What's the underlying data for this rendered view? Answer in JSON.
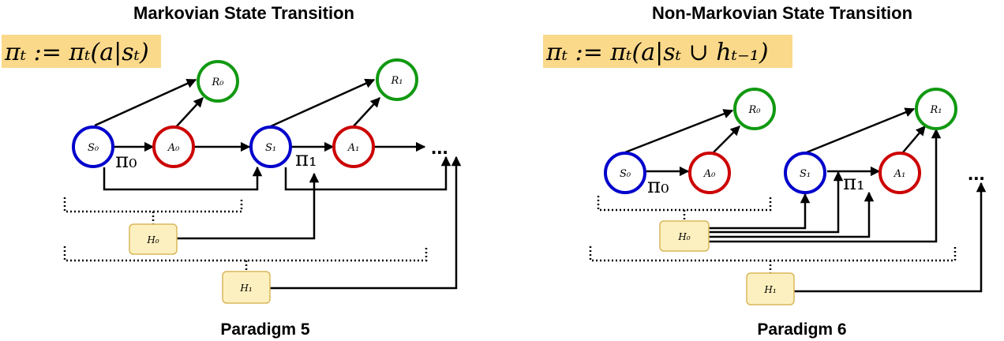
{
  "colors": {
    "state": "#0000cc",
    "action": "#cc0000",
    "reward": "#119911",
    "history_fill": "#fdf0c0",
    "history_stroke": "#d9b75a",
    "highlight": "#fbd98a"
  },
  "panels": [
    {
      "title": "Markovian State Transition",
      "formula": "πₜ := πₜ(a|sₜ)",
      "caption": "Paradigm 5",
      "labels": {
        "s0": "S₀",
        "a0": "A₀",
        "r0": "R₀",
        "s1": "S₁",
        "a1": "A₁",
        "r1": "R₁",
        "h0": "H₀",
        "h1": "H₁",
        "pi0": "π₀",
        "pi1": "π₁",
        "ellipsis": "..."
      }
    },
    {
      "title": "Non-Markovian State Transition",
      "formula": "πₜ := πₜ(a|sₜ ∪ hₜ₋₁)",
      "caption": "Paradigm 6",
      "labels": {
        "s0": "S₀",
        "a0": "A₀",
        "r0": "R₀",
        "s1": "S₁",
        "a1": "A₁",
        "r1": "R₁",
        "h0": "H₀",
        "h1": "H₁",
        "pi0": "π₀",
        "pi1": "π₁",
        "ellipsis": "..."
      }
    }
  ]
}
